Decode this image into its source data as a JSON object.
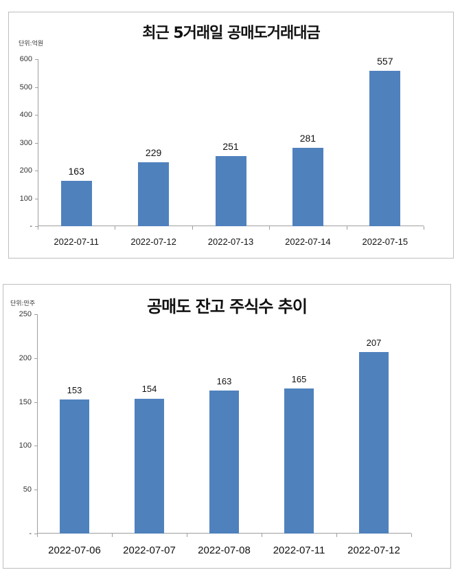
{
  "chart_data": [
    {
      "type": "bar",
      "title": "최근 5거래일 공매도거래대금",
      "unit_label": "단위:억원",
      "xlabel": "",
      "ylabel": "",
      "categories": [
        "2022-07-11",
        "2022-07-12",
        "2022-07-13",
        "2022-07-14",
        "2022-07-15"
      ],
      "values": [
        163,
        229,
        251,
        281,
        557
      ],
      "ylim": [
        0,
        600
      ],
      "yticks": [
        "-",
        "100",
        "200",
        "300",
        "400",
        "500",
        "600"
      ],
      "grid": false,
      "legend": null,
      "bar_color": "#4f81bd",
      "data_labels": [
        "163",
        "229",
        "251",
        "281",
        "557"
      ]
    },
    {
      "type": "bar",
      "title": "공매도 잔고 주식수 추이",
      "unit_label": "단위:만주",
      "xlabel": "",
      "ylabel": "",
      "categories": [
        "2022-07-06",
        "2022-07-07",
        "2022-07-08",
        "2022-07-11",
        "2022-07-12"
      ],
      "values": [
        153,
        154,
        163,
        165,
        207
      ],
      "ylim": [
        0,
        250
      ],
      "yticks": [
        "-",
        "50",
        "100",
        "150",
        "200",
        "250"
      ],
      "grid": false,
      "legend": null,
      "bar_color": "#4f81bd",
      "data_labels": [
        "153",
        "154",
        "163",
        "165",
        "207"
      ]
    }
  ]
}
